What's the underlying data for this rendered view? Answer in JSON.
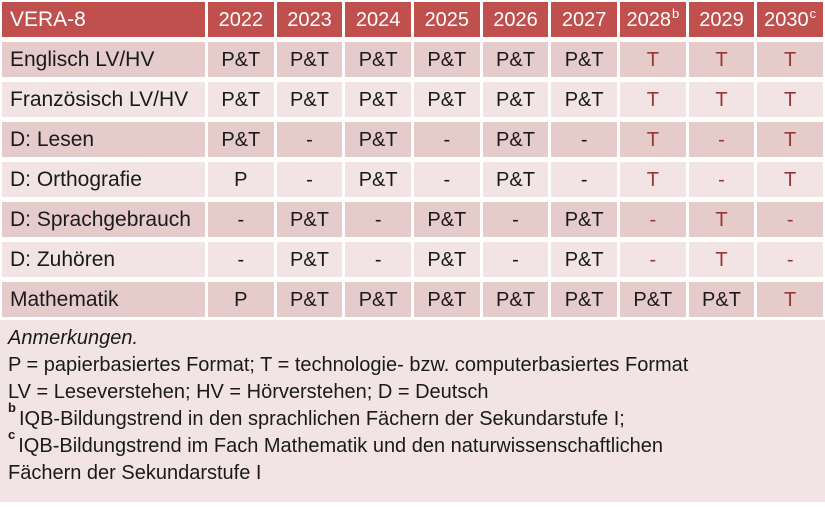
{
  "table": {
    "corner_label": "VERA-8",
    "columns": [
      {
        "year": "2022",
        "sup": ""
      },
      {
        "year": "2023",
        "sup": ""
      },
      {
        "year": "2024",
        "sup": ""
      },
      {
        "year": "2025",
        "sup": ""
      },
      {
        "year": "2026",
        "sup": ""
      },
      {
        "year": "2027",
        "sup": ""
      },
      {
        "year": "2028",
        "sup": "b"
      },
      {
        "year": "2029",
        "sup": ""
      },
      {
        "year": "2030",
        "sup": "c"
      }
    ],
    "rows": [
      {
        "label": "Englisch LV/HV",
        "cells": [
          {
            "text": "P&T",
            "red": false
          },
          {
            "text": "P&T",
            "red": false
          },
          {
            "text": "P&T",
            "red": false
          },
          {
            "text": "P&T",
            "red": false
          },
          {
            "text": "P&T",
            "red": false
          },
          {
            "text": "P&T",
            "red": false
          },
          {
            "text": "T",
            "red": true
          },
          {
            "text": "T",
            "red": true
          },
          {
            "text": "T",
            "red": true
          }
        ]
      },
      {
        "label": "Französisch LV/HV",
        "cells": [
          {
            "text": "P&T",
            "red": false
          },
          {
            "text": "P&T",
            "red": false
          },
          {
            "text": "P&T",
            "red": false
          },
          {
            "text": "P&T",
            "red": false
          },
          {
            "text": "P&T",
            "red": false
          },
          {
            "text": "P&T",
            "red": false
          },
          {
            "text": "T",
            "red": true
          },
          {
            "text": "T",
            "red": true
          },
          {
            "text": "T",
            "red": true
          }
        ]
      },
      {
        "label": "D: Lesen",
        "cells": [
          {
            "text": "P&T",
            "red": false
          },
          {
            "text": "-",
            "red": false
          },
          {
            "text": "P&T",
            "red": false
          },
          {
            "text": "-",
            "red": false
          },
          {
            "text": "P&T",
            "red": false
          },
          {
            "text": "-",
            "red": false
          },
          {
            "text": "T",
            "red": true
          },
          {
            "text": "-",
            "red": true
          },
          {
            "text": "T",
            "red": true
          }
        ]
      },
      {
        "label": "D: Orthografie",
        "cells": [
          {
            "text": "P",
            "red": false
          },
          {
            "text": "-",
            "red": false
          },
          {
            "text": "P&T",
            "red": false
          },
          {
            "text": "-",
            "red": false
          },
          {
            "text": "P&T",
            "red": false
          },
          {
            "text": "-",
            "red": false
          },
          {
            "text": "T",
            "red": true
          },
          {
            "text": "-",
            "red": true
          },
          {
            "text": "T",
            "red": true
          }
        ]
      },
      {
        "label": "D: Sprachgebrauch",
        "cells": [
          {
            "text": "-",
            "red": false
          },
          {
            "text": "P&T",
            "red": false
          },
          {
            "text": "-",
            "red": false
          },
          {
            "text": "P&T",
            "red": false
          },
          {
            "text": "-",
            "red": false
          },
          {
            "text": "P&T",
            "red": false
          },
          {
            "text": "-",
            "red": true
          },
          {
            "text": "T",
            "red": true
          },
          {
            "text": "-",
            "red": true
          }
        ]
      },
      {
        "label": "D: Zuhören",
        "cells": [
          {
            "text": "-",
            "red": false
          },
          {
            "text": "P&T",
            "red": false
          },
          {
            "text": "-",
            "red": false
          },
          {
            "text": "P&T",
            "red": false
          },
          {
            "text": "-",
            "red": false
          },
          {
            "text": "P&T",
            "red": false
          },
          {
            "text": "-",
            "red": true
          },
          {
            "text": "T",
            "red": true
          },
          {
            "text": "-",
            "red": true
          }
        ]
      },
      {
        "label": "Mathematik",
        "cells": [
          {
            "text": "P",
            "red": false
          },
          {
            "text": "P&T",
            "red": false
          },
          {
            "text": "P&T",
            "red": false
          },
          {
            "text": "P&T",
            "red": false
          },
          {
            "text": "P&T",
            "red": false
          },
          {
            "text": "P&T",
            "red": false
          },
          {
            "text": "P&T",
            "red": false
          },
          {
            "text": "P&T",
            "red": false
          },
          {
            "text": "T",
            "red": true
          }
        ]
      }
    ]
  },
  "notes": {
    "title": "Anmerkungen.",
    "format_legend": "P = papierbasiertes Format; T = technologie- bzw. computerbasiertes Format",
    "abbrev_legend": "LV = Leseverstehen; HV = Hörverstehen; D = Deutsch",
    "footnote_b_sup": "b",
    "footnote_b": "IQB-Bildungstrend in den sprachlichen Fächern der Sekundarstufe I;",
    "footnote_c_sup": "c",
    "footnote_c_line1": "IQB-Bildungstrend im Fach Mathematik und den naturwissenschaftlichen",
    "footnote_c_line2": "Fächern der Sekundarstufe I"
  },
  "colors": {
    "header_bg": "#C0504D",
    "header_text": "#FFFFFF",
    "band_dark": "#E6CBCB",
    "band_light": "#F2E4E4",
    "notes_bg": "#F2E4E4",
    "accent_red": "#963735",
    "text": "#1A1A1A"
  }
}
